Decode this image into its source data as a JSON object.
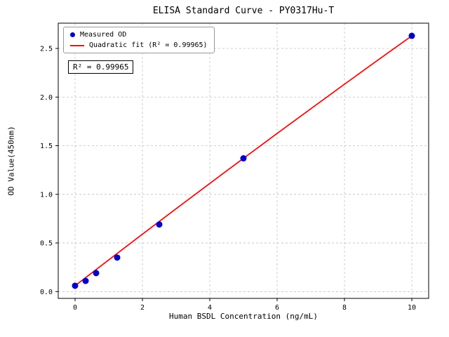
{
  "chart_data": {
    "type": "scatter",
    "title": "ELISA Standard Curve - PY0317Hu-T",
    "xlabel": "Human BSDL Concentration (ng/mL)",
    "ylabel": "OD Value(450nm)",
    "xlim": [
      -0.5,
      10.5
    ],
    "ylim": [
      -0.07,
      2.76
    ],
    "grid": true,
    "legend_position": "upper left",
    "annotation": "R² = 0.99965",
    "xticks": {
      "values": [
        0,
        2,
        4,
        6,
        8,
        10
      ],
      "labels": [
        "0",
        "2",
        "4",
        "6",
        "8",
        "10"
      ]
    },
    "yticks": {
      "values": [
        0,
        0.5,
        1,
        1.5,
        2,
        2.5
      ],
      "labels": [
        "0.0",
        "0.5",
        "1.0",
        "1.5",
        "2.0",
        "2.5"
      ]
    },
    "series": [
      {
        "name": "Measured OD",
        "type": "scatter",
        "color": "#0000cd",
        "x": [
          0,
          0.313,
          0.625,
          1.25,
          2.5,
          5,
          10
        ],
        "y": [
          0.06,
          0.11,
          0.19,
          0.35,
          0.69,
          1.37,
          2.63
        ]
      },
      {
        "name": "Quadratic fit (R² = 0.99965)",
        "type": "line",
        "color": "#ff0000",
        "x": [
          0,
          1,
          2,
          3,
          4,
          5,
          6,
          7,
          8,
          9,
          10
        ],
        "y": [
          0.06,
          0.326,
          0.59,
          0.852,
          1.112,
          1.37,
          1.626,
          1.88,
          2.132,
          2.382,
          2.63
        ]
      }
    ]
  }
}
